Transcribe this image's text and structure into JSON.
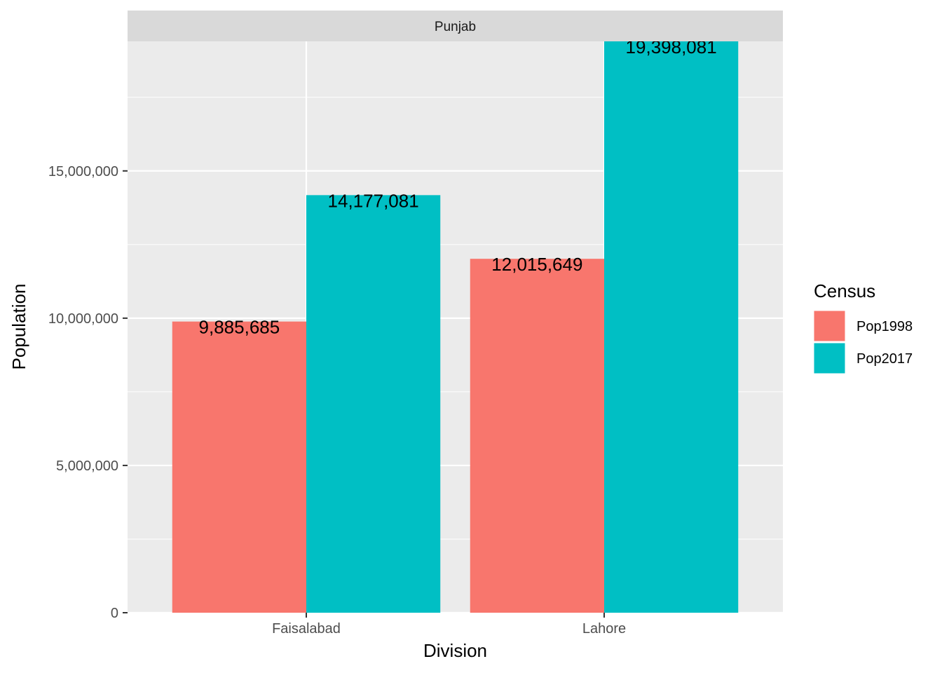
{
  "chart_data": {
    "type": "bar",
    "facet": "Punjab",
    "categories": [
      "Faisalabad",
      "Lahore"
    ],
    "series": [
      {
        "name": "Pop1998",
        "values": [
          9885685,
          12015649
        ],
        "labels": [
          "9,885,685",
          "12,015,649"
        ],
        "color": "#F8766D"
      },
      {
        "name": "Pop2017",
        "values": [
          14177081,
          19398081
        ],
        "labels": [
          "14,177,081",
          "19,398,081"
        ],
        "color": "#00BFC4"
      }
    ],
    "xlabel": "Division",
    "ylabel": "Population",
    "ylim": [
      0,
      19398081
    ],
    "yticks": [
      0,
      5000000,
      10000000,
      15000000
    ],
    "ytick_labels": [
      "0",
      "5,000,000",
      "10,000,000",
      "15,000,000"
    ],
    "grid": true,
    "legend": {
      "title": "Census",
      "position": "right"
    },
    "colors": {
      "panel": "#EBEBEB",
      "strip": "#D9D9D9",
      "grid": "#FFFFFF"
    }
  }
}
